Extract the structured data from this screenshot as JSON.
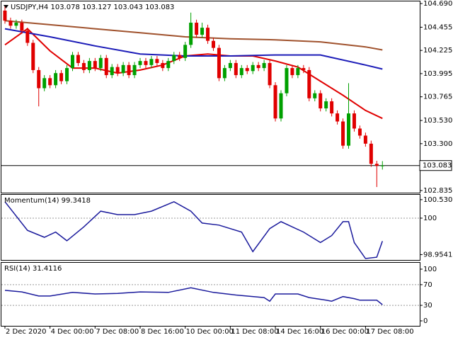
{
  "chart_data": [
    {
      "type": "candlestick",
      "title": "USDJPY,H4  103.078 103.127 103.043 103.083",
      "up_color": "#00a000",
      "down_color": "#e00000",
      "x": [
        0,
        1,
        2,
        3,
        4,
        5,
        6,
        7,
        8,
        9,
        10,
        11,
        12,
        13,
        14,
        15,
        16,
        17,
        18,
        19,
        20,
        21,
        22,
        23,
        24,
        25,
        26,
        27,
        28,
        29,
        30,
        31,
        32,
        33,
        34,
        35,
        36,
        37,
        38,
        39,
        40,
        41,
        42,
        43,
        44,
        45,
        46,
        47,
        48,
        49,
        50,
        51,
        52,
        53,
        54,
        55,
        56,
        57,
        58,
        59,
        60,
        61,
        62,
        63,
        64,
        65,
        66,
        67
      ],
      "open": [
        104.62,
        104.52,
        104.47,
        104.5,
        104.42,
        104.3,
        104.03,
        103.85,
        103.95,
        103.88,
        104.0,
        103.92,
        104.05,
        104.18,
        104.1,
        104.03,
        104.12,
        104.05,
        104.15,
        103.98,
        104.06,
        104.0,
        104.08,
        103.98,
        104.08,
        104.12,
        104.08,
        104.14,
        104.1,
        104.05,
        104.12,
        104.18,
        104.15,
        104.28,
        104.5,
        104.38,
        104.45,
        104.32,
        104.25,
        103.95,
        104.05,
        104.1,
        103.98,
        104.05,
        104.02,
        104.08,
        104.05,
        104.1,
        103.88,
        103.55,
        103.8,
        104.05,
        103.98,
        104.05,
        104.03,
        103.75,
        103.8,
        103.65,
        103.72,
        103.6,
        103.52,
        103.28,
        103.6,
        103.45,
        103.38,
        103.3,
        103.1,
        103.078
      ],
      "high": [
        104.66,
        104.55,
        104.53,
        104.53,
        104.45,
        104.33,
        104.06,
        103.98,
        103.98,
        104.03,
        104.03,
        104.08,
        104.21,
        104.21,
        104.13,
        104.15,
        104.15,
        104.18,
        104.18,
        104.09,
        104.09,
        104.11,
        104.11,
        104.11,
        104.15,
        104.15,
        104.17,
        104.17,
        104.13,
        104.15,
        104.21,
        104.21,
        104.31,
        104.6,
        104.53,
        104.5,
        104.48,
        104.35,
        104.28,
        104.08,
        104.13,
        104.13,
        104.08,
        104.08,
        104.11,
        104.11,
        104.13,
        104.13,
        103.91,
        103.83,
        104.08,
        104.08,
        104.08,
        104.08,
        104.06,
        103.83,
        103.83,
        103.75,
        103.75,
        103.63,
        103.55,
        103.9,
        103.63,
        103.48,
        103.41,
        103.33,
        103.13,
        103.127
      ],
      "low": [
        104.49,
        104.44,
        104.44,
        104.39,
        104.27,
        104.0,
        103.67,
        103.82,
        103.85,
        103.85,
        103.89,
        103.89,
        104.02,
        104.07,
        104.0,
        104.0,
        104.02,
        104.02,
        103.95,
        103.95,
        103.97,
        103.97,
        103.95,
        103.95,
        104.05,
        104.05,
        104.05,
        104.07,
        104.02,
        104.02,
        104.09,
        104.12,
        104.12,
        104.25,
        104.35,
        104.35,
        104.29,
        104.22,
        103.92,
        103.92,
        104.02,
        103.95,
        103.95,
        103.99,
        103.99,
        104.02,
        104.02,
        103.85,
        103.52,
        103.52,
        103.77,
        103.95,
        103.95,
        104.0,
        103.72,
        103.72,
        103.62,
        103.62,
        103.57,
        103.49,
        103.25,
        103.25,
        103.42,
        103.35,
        103.27,
        103.07,
        102.87,
        103.043
      ],
      "close": [
        104.52,
        104.47,
        104.5,
        104.42,
        104.3,
        104.03,
        103.85,
        103.95,
        103.88,
        104.0,
        103.92,
        104.05,
        104.18,
        104.1,
        104.03,
        104.12,
        104.05,
        104.15,
        103.98,
        104.06,
        104.0,
        104.08,
        103.98,
        104.08,
        104.12,
        104.08,
        104.14,
        104.1,
        104.05,
        104.12,
        104.18,
        104.15,
        104.28,
        104.5,
        104.38,
        104.45,
        104.32,
        104.25,
        103.95,
        104.05,
        104.1,
        103.98,
        104.05,
        104.02,
        104.08,
        104.05,
        104.1,
        103.88,
        103.55,
        103.8,
        104.05,
        103.98,
        104.05,
        104.03,
        103.75,
        103.8,
        103.65,
        103.72,
        103.6,
        103.52,
        103.28,
        103.6,
        103.45,
        103.38,
        103.3,
        103.1,
        103.08,
        103.083
      ],
      "lines": [
        {
          "color": "#e00000",
          "x": [
            0,
            4,
            8,
            12,
            16,
            20,
            24,
            28,
            32,
            36,
            40,
            44,
            48,
            52,
            56,
            60,
            64,
            67
          ],
          "values": [
            104.28,
            104.44,
            104.22,
            104.05,
            104.05,
            104.0,
            104.03,
            104.08,
            104.17,
            104.19,
            104.17,
            104.17,
            104.12,
            104.06,
            103.92,
            103.78,
            103.63,
            103.55
          ]
        },
        {
          "color": "#1c1cb8",
          "x": [
            0,
            8,
            16,
            24,
            32,
            40,
            48,
            56,
            64,
            67
          ],
          "values": [
            104.44,
            104.36,
            104.27,
            104.19,
            104.17,
            104.17,
            104.18,
            104.18,
            104.08,
            104.04
          ]
        },
        {
          "color": "#a0522d",
          "x": [
            0,
            8,
            16,
            24,
            32,
            40,
            48,
            56,
            64,
            67
          ],
          "values": [
            104.52,
            104.48,
            104.44,
            104.4,
            104.36,
            104.34,
            104.33,
            104.31,
            104.26,
            104.23
          ]
        }
      ],
      "current_price": 103.083,
      "xlim": [
        -0.625,
        73.625
      ],
      "ylim": [
        102.814,
        104.711
      ],
      "yticks": [
        {
          "value": 104.69,
          "label": "104.690"
        },
        104.455,
        104.225,
        103.995,
        103.765,
        {
          "value": 103.53,
          "label": "103.530"
        },
        {
          "value": 103.3,
          "label": "103.300"
        },
        102.835
      ]
    },
    {
      "type": "line",
      "label": "Momentum(14) 99.3418",
      "color": "#1a1a9c",
      "x": [
        0,
        4,
        7,
        9,
        11,
        14,
        17,
        20,
        23,
        26,
        30,
        33,
        35,
        38,
        42,
        44,
        47,
        49,
        51,
        53,
        56,
        58,
        60,
        61,
        62,
        64,
        66,
        67
      ],
      "values": [
        100.47,
        99.65,
        99.45,
        99.6,
        99.35,
        99.75,
        100.2,
        100.1,
        100.1,
        100.2,
        100.47,
        100.2,
        99.86,
        99.8,
        99.6,
        99.04,
        99.7,
        99.9,
        99.75,
        99.6,
        99.3,
        99.5,
        99.9,
        99.9,
        99.3,
        98.84,
        98.88,
        99.34
      ],
      "reference_lines": [
        100
      ],
      "xlim": [
        -0.625,
        73.625
      ],
      "ylim": [
        98.8,
        100.67
      ],
      "yticks": [
        100.5302,
        100,
        98.9541
      ]
    },
    {
      "type": "line",
      "label": "RSI(14) 31.4116",
      "color": "#1a1a9c",
      "x": [
        0,
        3,
        6,
        8,
        12,
        16,
        20,
        24,
        29,
        33,
        37,
        41,
        46,
        47,
        48,
        52,
        54,
        57,
        58,
        60,
        62,
        63,
        66,
        67
      ],
      "values": [
        59,
        56,
        48,
        48,
        55,
        52,
        53,
        56,
        55,
        64,
        55,
        50,
        45,
        38,
        52,
        52,
        45,
        40,
        38,
        47,
        43,
        40,
        40,
        31.4
      ],
      "reference_lines": [
        70,
        30
      ],
      "xlim": [
        -0.625,
        73.625
      ],
      "ylim": [
        -9.6,
        112.3
      ],
      "yticks": [
        100,
        70,
        30,
        0
      ],
      "xticks": [
        {
          "value": 0,
          "label": "2 Dec 2020"
        },
        {
          "value": 8,
          "label": "4 Dec 00:00"
        },
        {
          "value": 16,
          "label": "7 Dec 08:00"
        },
        {
          "value": 24,
          "label": "8 Dec 16:00"
        },
        {
          "value": 32,
          "label": "10 Dec 00:00"
        },
        {
          "value": 40,
          "label": "11 Dec 08:00"
        },
        {
          "value": 48,
          "label": "14 Dec 16:00"
        },
        {
          "value": 56,
          "label": "16 Dec 00:00"
        },
        {
          "value": 64,
          "label": "17 Dec 08:00"
        }
      ]
    }
  ]
}
